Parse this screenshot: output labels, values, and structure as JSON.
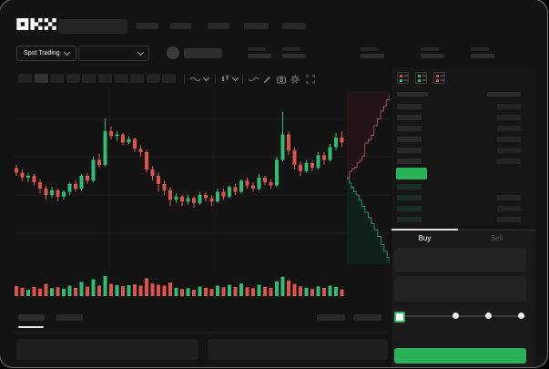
{
  "brand": {
    "logo": "OKX"
  },
  "subheader": {
    "market_selector": "Spot Trading"
  },
  "toolbar": {
    "timeframe_slots": 10
  },
  "chart": {
    "up_color": "#2ebd74",
    "down_color": "#dd544b",
    "grid_color": "#1c1c1c",
    "candles": [
      [
        53,
        50,
        55,
        48
      ],
      [
        50,
        47,
        52,
        45
      ],
      [
        47,
        48,
        50,
        44
      ],
      [
        48,
        44,
        49,
        42
      ],
      [
        44,
        40,
        46,
        37
      ],
      [
        40,
        36,
        42,
        33
      ],
      [
        36,
        39,
        41,
        34
      ],
      [
        39,
        35,
        40,
        32
      ],
      [
        35,
        38,
        39,
        33
      ],
      [
        38,
        43,
        44,
        36
      ],
      [
        43,
        40,
        45,
        38
      ],
      [
        40,
        48,
        49,
        39
      ],
      [
        48,
        45,
        50,
        43
      ],
      [
        45,
        58,
        60,
        44
      ],
      [
        58,
        55,
        62,
        53
      ],
      [
        55,
        76,
        84,
        54
      ],
      [
        76,
        73,
        79,
        71
      ],
      [
        73,
        74,
        76,
        70
      ],
      [
        74,
        69,
        75,
        67
      ],
      [
        69,
        71,
        73,
        68
      ],
      [
        71,
        65,
        72,
        63
      ],
      [
        65,
        63,
        67,
        60
      ],
      [
        63,
        52,
        64,
        50
      ],
      [
        52,
        48,
        54,
        45
      ],
      [
        48,
        43,
        50,
        38
      ],
      [
        43,
        39,
        45,
        36
      ],
      [
        39,
        33,
        41,
        29
      ],
      [
        33,
        35,
        37,
        31
      ],
      [
        35,
        32,
        36,
        29
      ],
      [
        32,
        34,
        36,
        30
      ],
      [
        34,
        31,
        35,
        28
      ],
      [
        31,
        36,
        38,
        30
      ],
      [
        36,
        34,
        38,
        32
      ],
      [
        34,
        32,
        36,
        29
      ],
      [
        32,
        38,
        40,
        31
      ],
      [
        38,
        35,
        40,
        33
      ],
      [
        35,
        41,
        42,
        34
      ],
      [
        41,
        38,
        43,
        36
      ],
      [
        38,
        45,
        46,
        37
      ],
      [
        45,
        42,
        47,
        40
      ],
      [
        42,
        40,
        44,
        38
      ],
      [
        40,
        47,
        49,
        39
      ],
      [
        47,
        44,
        48,
        42
      ],
      [
        44,
        42,
        46,
        40
      ],
      [
        42,
        58,
        60,
        41
      ],
      [
        58,
        74,
        88,
        57
      ],
      [
        74,
        64,
        76,
        61
      ],
      [
        64,
        55,
        66,
        52
      ],
      [
        55,
        51,
        57,
        48
      ],
      [
        51,
        56,
        58,
        50
      ],
      [
        56,
        53,
        58,
        51
      ],
      [
        53,
        61,
        63,
        52
      ],
      [
        61,
        58,
        63,
        55
      ],
      [
        58,
        66,
        68,
        57
      ],
      [
        66,
        72,
        75,
        64
      ],
      [
        72,
        69,
        76,
        66
      ]
    ],
    "volumes": [
      48,
      40,
      30,
      44,
      36,
      58,
      38,
      42,
      35,
      50,
      40,
      68,
      45,
      80,
      50,
      96,
      58,
      52,
      48,
      52,
      56,
      50,
      85,
      60,
      54,
      50,
      64,
      40,
      34,
      38,
      30,
      46,
      40,
      34,
      50,
      42,
      54,
      44,
      60,
      42,
      38,
      54,
      44,
      40,
      70,
      92,
      74,
      58,
      46,
      40,
      34,
      46,
      40,
      50,
      44,
      32
    ]
  },
  "depth": {
    "ask_line_color": "#a04f5a",
    "bid_line_color": "#2f8a63",
    "ask_fill_color": "#221317",
    "bid_fill_color": "#0e2019",
    "asks": [
      [
        0,
        0.5
      ],
      [
        0.06,
        0.465
      ],
      [
        0.12,
        0.45
      ],
      [
        0.18,
        0.44
      ],
      [
        0.24,
        0.415
      ],
      [
        0.3,
        0.4
      ],
      [
        0.36,
        0.375
      ],
      [
        0.42,
        0.3
      ],
      [
        0.5,
        0.28
      ],
      [
        0.57,
        0.255
      ],
      [
        0.63,
        0.2
      ],
      [
        0.71,
        0.16
      ],
      [
        0.79,
        0.115
      ],
      [
        0.86,
        0.085
      ],
      [
        0.93,
        0.05
      ],
      [
        1,
        0.02
      ]
    ],
    "bids": [
      [
        0,
        0.505
      ],
      [
        0.05,
        0.53
      ],
      [
        0.1,
        0.555
      ],
      [
        0.16,
        0.58
      ],
      [
        0.22,
        0.6
      ],
      [
        0.28,
        0.63
      ],
      [
        0.35,
        0.665
      ],
      [
        0.42,
        0.7
      ],
      [
        0.5,
        0.73
      ],
      [
        0.57,
        0.765
      ],
      [
        0.64,
        0.8
      ],
      [
        0.72,
        0.84
      ],
      [
        0.8,
        0.885
      ],
      [
        0.87,
        0.925
      ],
      [
        0.94,
        0.96
      ],
      [
        1,
        0.99
      ]
    ]
  },
  "orderbook": {
    "view_modes": [
      "combined-book-icon",
      "bids-book-icon",
      "asks-book-icon"
    ],
    "ask_rows": 6,
    "bid_rows": 4,
    "last_price_color": "#2bb157"
  },
  "trade_form": {
    "tabs": [
      {
        "label": "Buy",
        "active": true
      },
      {
        "label": "Sell",
        "active": false
      }
    ],
    "slider_steps": 5,
    "buy_button_color": "#2bb157"
  }
}
